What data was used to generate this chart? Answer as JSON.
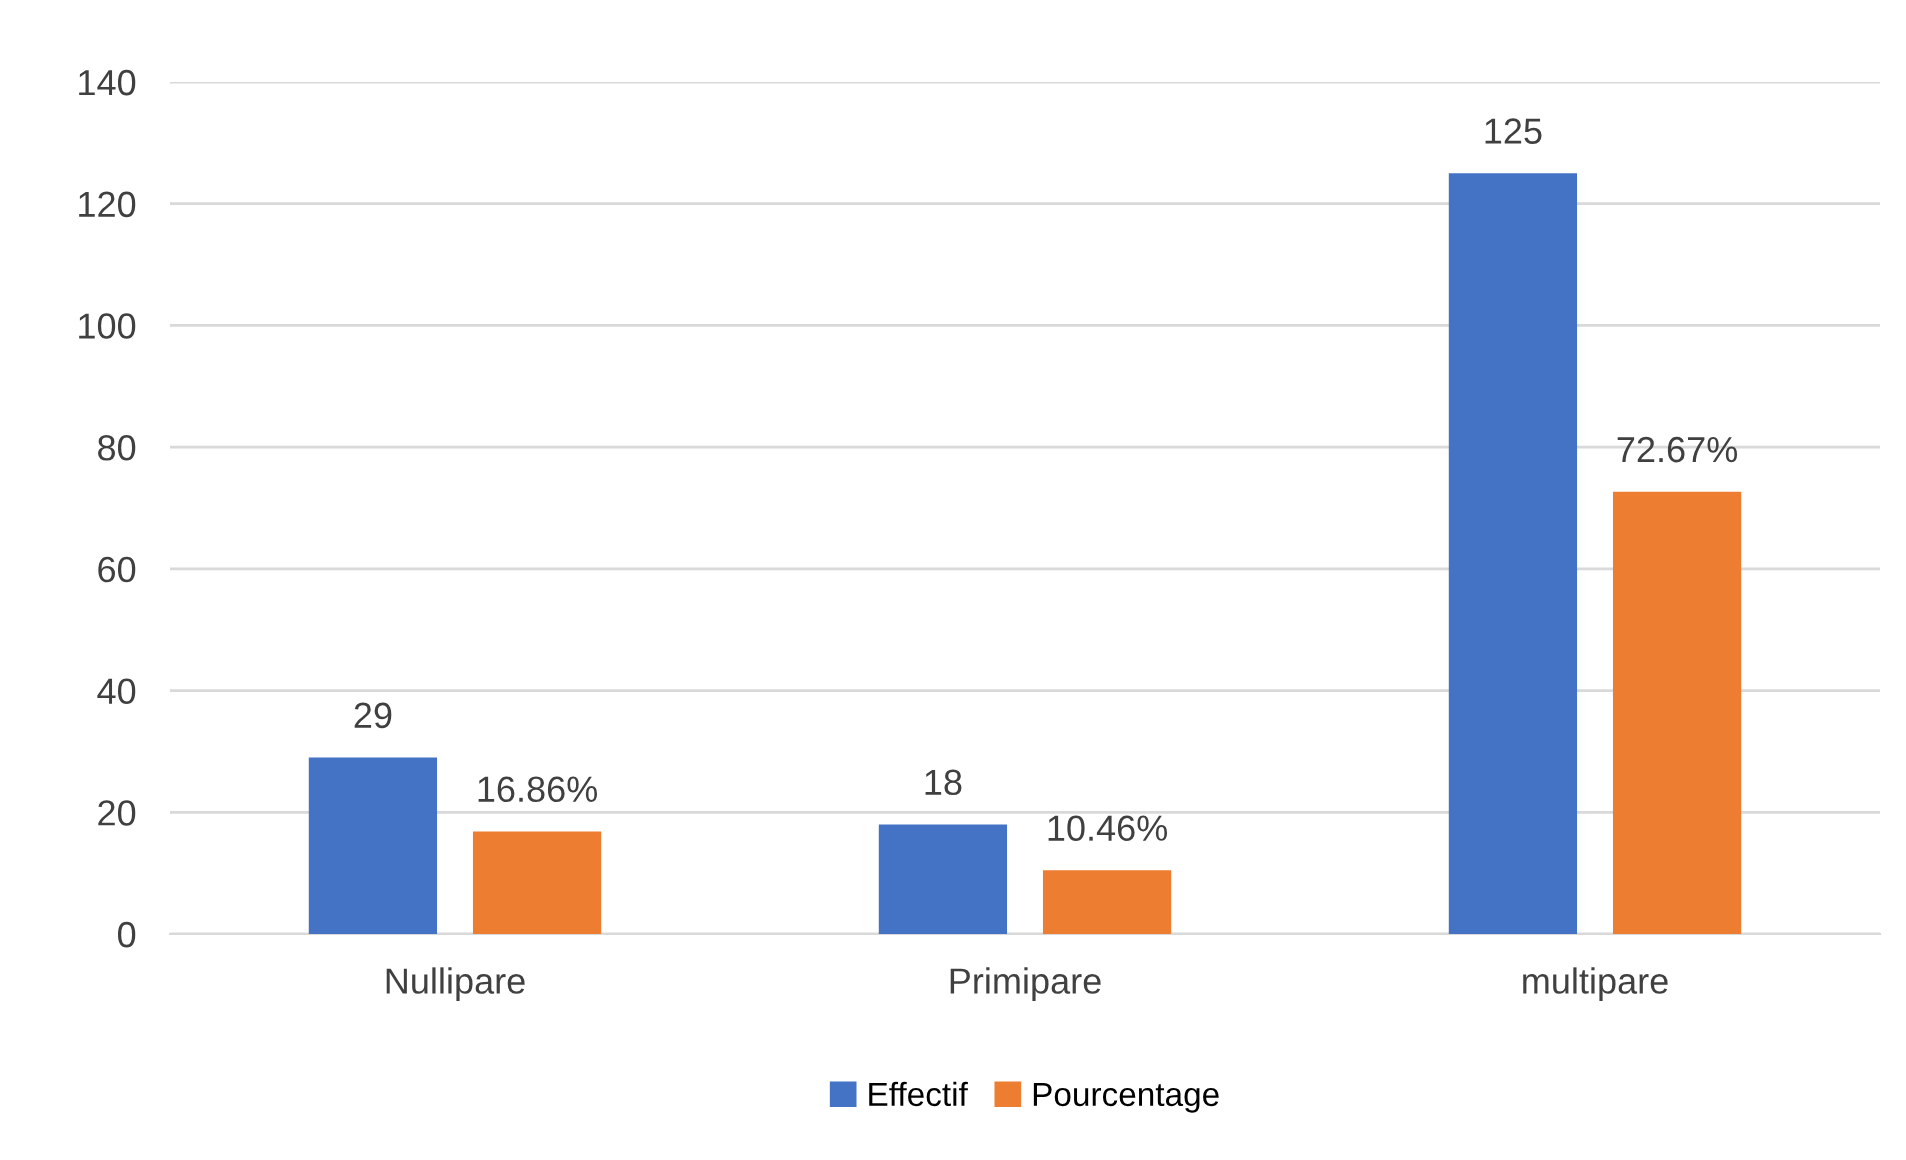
{
  "chart_data": {
    "type": "bar",
    "categories": [
      "Nullipare",
      "Primipare",
      "multipare"
    ],
    "series": [
      {
        "name": "Effectif",
        "color": "#4472c4",
        "values": [
          29,
          18,
          125
        ],
        "value_labels": [
          "29",
          "18",
          "125"
        ]
      },
      {
        "name": "Pourcentage",
        "color": "#ed7d31",
        "values": [
          16.86,
          10.46,
          72.67
        ],
        "value_labels": [
          "16.86%",
          "10.46%",
          "72.67%"
        ]
      }
    ],
    "ylim": [
      0,
      140
    ],
    "yticks": [
      0,
      20,
      40,
      60,
      80,
      100,
      120,
      140
    ],
    "grid": "y",
    "legend": "bottom"
  }
}
